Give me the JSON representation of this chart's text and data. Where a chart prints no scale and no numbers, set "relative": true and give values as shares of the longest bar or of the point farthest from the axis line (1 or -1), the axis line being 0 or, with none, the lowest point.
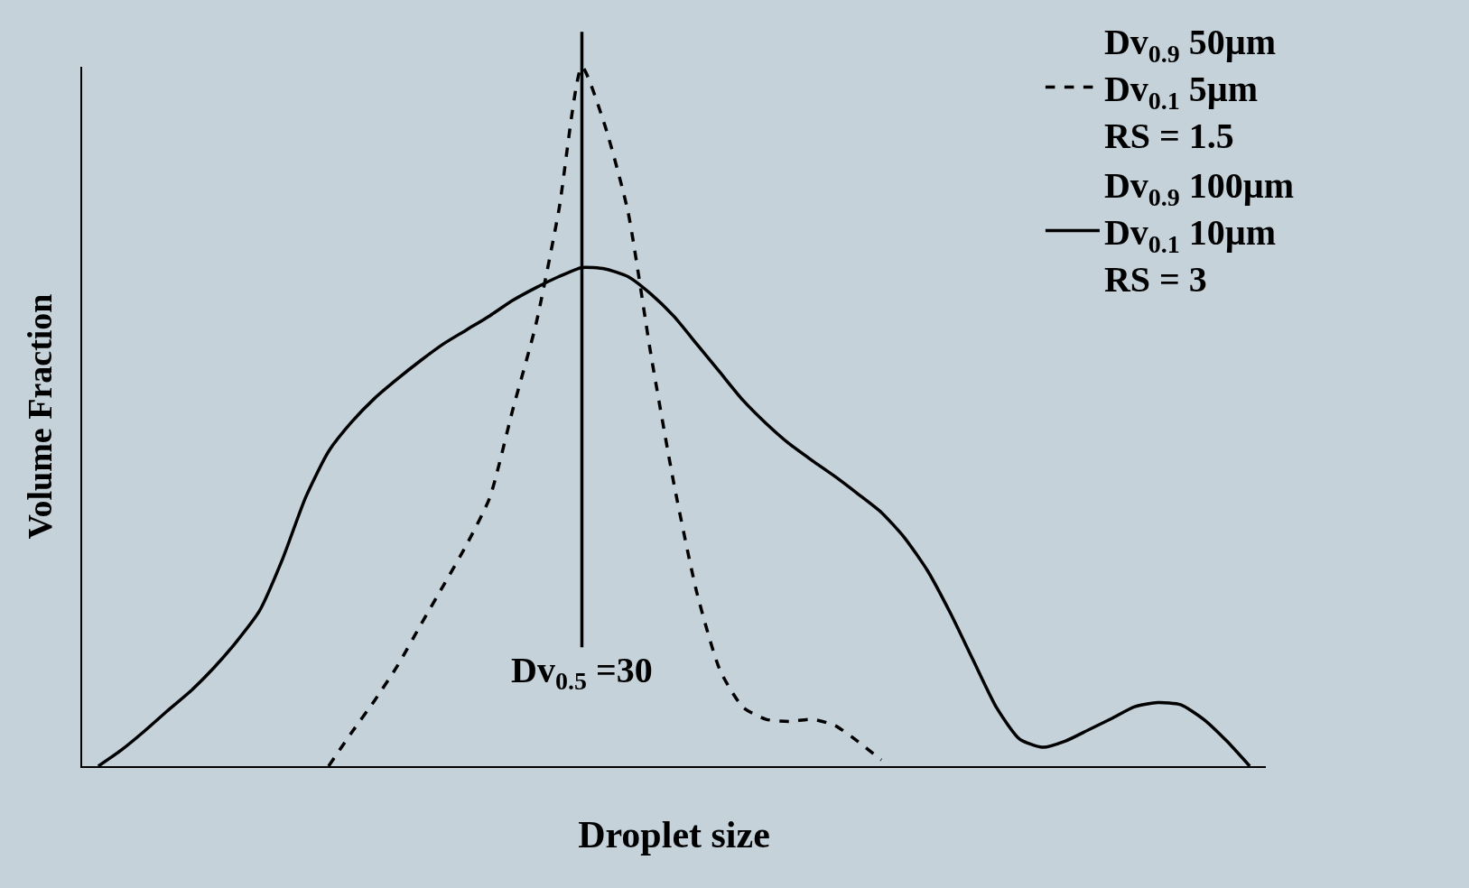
{
  "chart_data": {
    "type": "line",
    "relative": true,
    "xlabel": "Droplet size",
    "ylabel": "Volume Fraction",
    "legend": "top right",
    "grid": false,
    "tick_labels": false,
    "marker": "none",
    "categories": [
      null,
      null,
      null,
      null,
      null,
      null,
      null,
      null,
      null,
      null,
      null,
      null,
      null,
      null,
      null,
      null,
      null,
      null,
      null,
      null,
      null,
      null,
      null,
      null,
      null,
      null,
      null,
      null,
      null,
      null,
      null,
      null,
      null,
      null,
      null,
      null,
      null,
      null,
      null,
      null,
      null,
      null,
      null,
      null,
      null,
      null,
      null,
      null,
      null,
      null,
      null
    ],
    "series": [
      {
        "name": "Dv$_{0.9}$ 50µm\nDv$_{0.1}$ 5µm\nRS = 1.5",
        "color": "#000000",
        "line_style": "dashed",
        "values": [
          null,
          null,
          null,
          null,
          null,
          null,
          null,
          null,
          null,
          null,
          0,
          0.048,
          0.094,
          0.144,
          0.202,
          0.259,
          0.317,
          0.384,
          0.51,
          0.631,
          0.795,
          1,
          0.916,
          0.793,
          0.588,
          0.403,
          0.247,
          0.137,
          0.084,
          0.067,
          0.064,
          0.067,
          0.058,
          0.035,
          0.009,
          null,
          null,
          null,
          null,
          null,
          null,
          null,
          null,
          null,
          null,
          null,
          null,
          null,
          null,
          null,
          null
        ]
      },
      {
        "name": "Dv$_{0.9}$ 100µm\nDv$_{0.1}$ 10µm\nRS = 3",
        "color": "#000000",
        "line_style": "solid",
        "values": [
          0,
          0.023,
          0.05,
          0.079,
          0.107,
          0.14,
          0.178,
          0.222,
          0.296,
          0.384,
          0.45,
          0.492,
          0.526,
          0.554,
          0.58,
          0.604,
          0.624,
          0.644,
          0.666,
          0.684,
          0.7,
          0.713,
          0.711,
          0.7,
          0.675,
          0.643,
          0.603,
          0.563,
          0.523,
          0.49,
          0.461,
          0.437,
          0.414,
          0.389,
          0.363,
          0.327,
          0.28,
          0.219,
          0.151,
          0.084,
          0.039,
          0.027,
          0.036,
          0.052,
          0.068,
          0.085,
          0.091,
          0.088,
          0.067,
          0.036,
          0
        ]
      }
    ],
    "annotations": [
      "Dv$_{0.5}$ =30"
    ]
  }
}
